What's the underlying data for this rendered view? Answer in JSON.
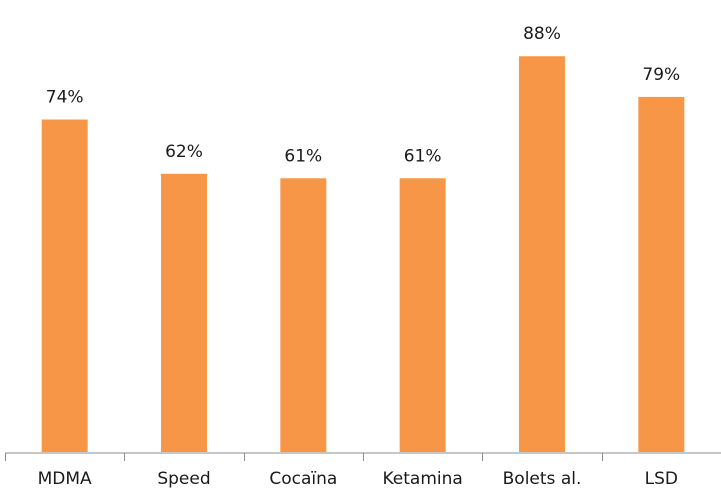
{
  "chart_data": {
    "type": "bar",
    "categories": [
      "MDMA",
      "Speed",
      "Cocaïna",
      "Ketamina",
      "Bolets al.",
      "LSD"
    ],
    "values": [
      74,
      62,
      61,
      61,
      88,
      79
    ],
    "data_labels": [
      "74%",
      "62%",
      "61%",
      "61%",
      "88%",
      "79%"
    ],
    "ylim": [
      0,
      100
    ],
    "grid": false,
    "legend": "none",
    "bar_color": "#F79646"
  }
}
